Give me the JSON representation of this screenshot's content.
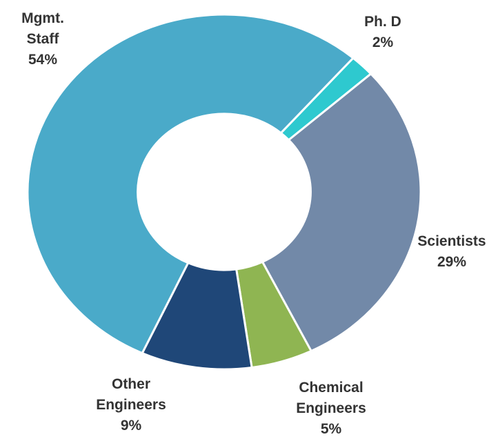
{
  "chart_data": {
    "type": "donut",
    "categories": [
      "Ph. D",
      "Scientists",
      "Chemical Engineers",
      "Other Engineers",
      "Mgmt. Staff"
    ],
    "values": [
      2,
      29,
      5,
      9,
      54
    ],
    "value_labels": [
      "2%",
      "29%",
      "5%",
      "9%",
      "54%"
    ],
    "colors": [
      "#2ec9cf",
      "#7289a8",
      "#8fb552",
      "#1f4778",
      "#4aaac9"
    ]
  }
}
